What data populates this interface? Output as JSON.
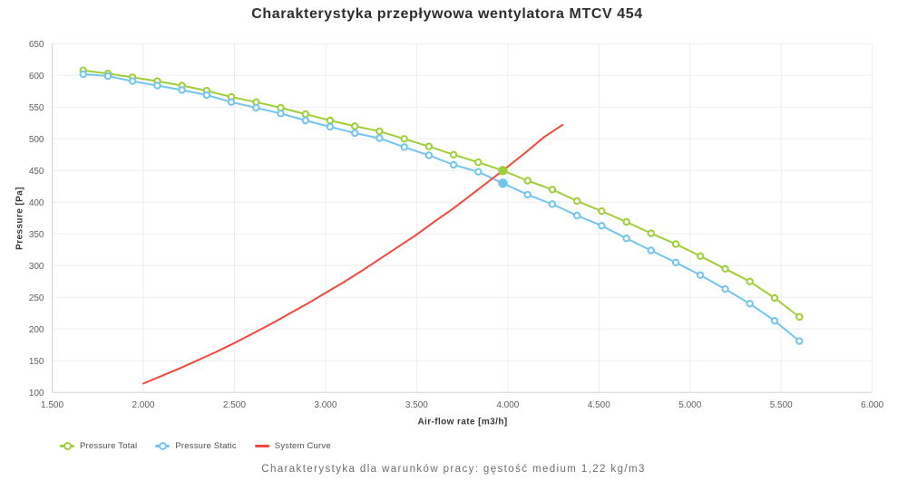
{
  "page": {
    "title": "Charakterystyka przepływowa wentylatora MTCV 454",
    "subtitle": "Charakterystyka dla warunków pracy: gęstość medium 1,22 kg/m3"
  },
  "axes": {
    "x_label": "Air-flow rate [m3/h]",
    "y_label": "Pressure [Pa]"
  },
  "colors": {
    "pressure_total": "#a0ce3a",
    "pressure_static": "#73c5ee",
    "system_curve": "#f4473e",
    "grid": "#ededed",
    "axis": "#d5d5d5",
    "tick_text": "#5f5f5f",
    "title_text": "#2e2e2e",
    "subtitle_text": "#6d6d6d",
    "legend_text": "#4f4f4f"
  },
  "chart_data": {
    "type": "line",
    "title": "Charakterystyka przepływowa wentylatora MTCV 454",
    "subtitle": "Charakterystyka dla warunków pracy: gęstość medium 1,22 kg/m3",
    "xlabel": "Air-flow rate [m3/h]",
    "ylabel": "Pressure [Pa]",
    "xlim": [
      1500,
      6000
    ],
    "ylim": [
      100,
      650
    ],
    "grid": true,
    "legend_position": "bottom-left",
    "x_ticks": {
      "values": [
        1500,
        2000,
        2500,
        3000,
        3500,
        4000,
        4500,
        5000,
        5500,
        6000
      ],
      "labels": [
        "1.500",
        "2.000",
        "2.500",
        "3.000",
        "3.500",
        "4.000",
        "4.500",
        "5.000",
        "5.500",
        "6.000"
      ]
    },
    "y_ticks": {
      "values": [
        650,
        600,
        550,
        500,
        450,
        400,
        350,
        300,
        250,
        200,
        150,
        100
      ],
      "labels": [
        "650",
        "600",
        "550",
        "500",
        "450",
        "400",
        "350",
        "300",
        "250",
        "200",
        "150",
        "100"
      ]
    },
    "series": [
      {
        "id": "pressure-total",
        "name": "Pressure Total",
        "color": "#a0ce3a",
        "marker": "circle",
        "x": [
          1670,
          1806,
          1941,
          2077,
          2212,
          2348,
          2483,
          2619,
          2754,
          2890,
          3025,
          3161,
          3296,
          3432,
          3567,
          3703,
          3838,
          3973,
          4109,
          4244,
          4380,
          4515,
          4651,
          4786,
          4922,
          5057,
          5193,
          5328,
          5464,
          5600
        ],
        "y": [
          608,
          603,
          597,
          591,
          584,
          576,
          566,
          558,
          549,
          539,
          529,
          520,
          512,
          500,
          488,
          475,
          463,
          450,
          434,
          420,
          402,
          386,
          369,
          351,
          334,
          315,
          295,
          275,
          249,
          219
        ]
      },
      {
        "id": "pressure-static",
        "name": "Pressure Static",
        "color": "#73c5ee",
        "marker": "circle",
        "x": [
          1670,
          1806,
          1941,
          2077,
          2212,
          2348,
          2483,
          2619,
          2754,
          2890,
          3025,
          3161,
          3296,
          3432,
          3567,
          3703,
          3838,
          3973,
          4109,
          4244,
          4380,
          4515,
          4651,
          4786,
          4922,
          5057,
          5193,
          5328,
          5464,
          5600
        ],
        "y": [
          602,
          599,
          591,
          584,
          577,
          569,
          558,
          549,
          540,
          529,
          519,
          509,
          501,
          487,
          474,
          459,
          448,
          430,
          412,
          397,
          379,
          363,
          343,
          324,
          305,
          285,
          263,
          240,
          213,
          181
        ]
      },
      {
        "id": "system-curve",
        "name": "System Curve",
        "color": "#f4473e",
        "marker": "none",
        "x": [
          2000,
          2100,
          2200,
          2300,
          2400,
          2500,
          2600,
          2700,
          2800,
          2900,
          3000,
          3100,
          3200,
          3300,
          3400,
          3500,
          3600,
          3700,
          3800,
          3900,
          3973,
          4100,
          4200,
          4300
        ],
        "y": [
          114,
          126,
          138,
          151,
          164,
          178,
          193,
          208,
          224,
          240,
          257,
          274,
          292,
          311,
          330,
          349,
          370,
          390,
          412,
          434,
          450,
          479,
          503,
          522
        ]
      }
    ],
    "operating_point": {
      "flow": 3973,
      "pressure_total": 450,
      "pressure_static": 430
    }
  }
}
